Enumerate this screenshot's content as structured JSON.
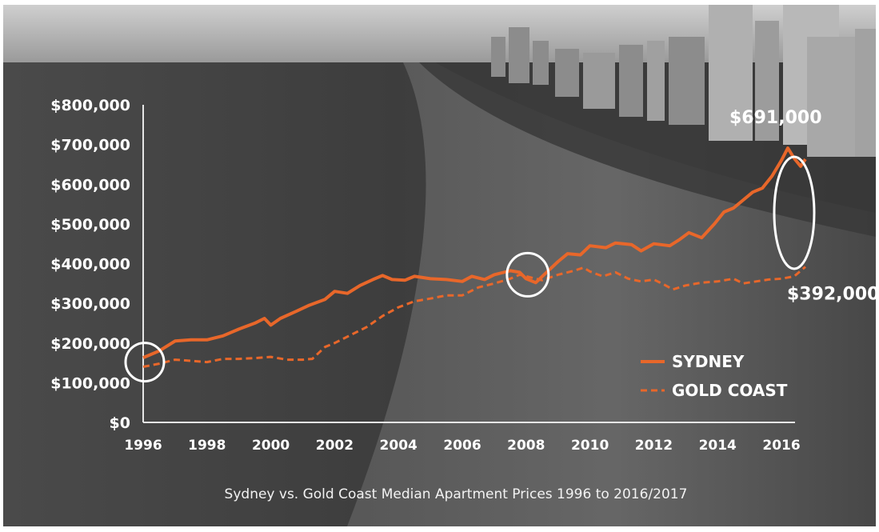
{
  "chart_data": {
    "type": "line",
    "title": "Sydney vs. Gold Coast Median Apartment Prices 1996 to 2016/2017",
    "xlabel": "",
    "ylabel": "",
    "xlim": [
      1996,
      2016.3
    ],
    "ylim": [
      0,
      800000
    ],
    "x_ticks": [
      "1996",
      "1998",
      "2000",
      "2002",
      "2004",
      "2006",
      "2008",
      "2010",
      "2012",
      "2014",
      "2016"
    ],
    "y_ticks": [
      "$0",
      "$100,000",
      "$200,000",
      "$300,000",
      "$400,000",
      "$500,000",
      "$600,000",
      "$700,000",
      "$800,000"
    ],
    "grid": false,
    "legend_position": "bottom-right",
    "colors": {
      "series": "#e8672a",
      "text": "#ffffff",
      "axis": "#e6e6e6",
      "highlight": "#ffffff"
    },
    "series": [
      {
        "name": "SYDNEY",
        "style": "solid",
        "points": [
          [
            1996,
            163000
          ],
          [
            1996.5,
            180000
          ],
          [
            1997,
            205000
          ],
          [
            1997.5,
            208000
          ],
          [
            1998,
            208000
          ],
          [
            1998.5,
            218000
          ],
          [
            1999,
            235000
          ],
          [
            1999.5,
            250000
          ],
          [
            1999.8,
            262000
          ],
          [
            2000,
            245000
          ],
          [
            2000.3,
            262000
          ],
          [
            2000.8,
            280000
          ],
          [
            2001.2,
            295000
          ],
          [
            2001.7,
            310000
          ],
          [
            2002,
            330000
          ],
          [
            2002.4,
            325000
          ],
          [
            2002.8,
            345000
          ],
          [
            2003.2,
            360000
          ],
          [
            2003.5,
            370000
          ],
          [
            2003.8,
            360000
          ],
          [
            2004.2,
            358000
          ],
          [
            2004.5,
            368000
          ],
          [
            2005,
            362000
          ],
          [
            2005.5,
            360000
          ],
          [
            2006,
            355000
          ],
          [
            2006.3,
            368000
          ],
          [
            2006.7,
            360000
          ],
          [
            2007,
            372000
          ],
          [
            2007.5,
            382000
          ],
          [
            2007.8,
            378000
          ],
          [
            2008,
            362000
          ],
          [
            2008.3,
            352000
          ],
          [
            2008.6,
            375000
          ],
          [
            2009,
            405000
          ],
          [
            2009.3,
            425000
          ],
          [
            2009.7,
            422000
          ],
          [
            2010,
            445000
          ],
          [
            2010.5,
            440000
          ],
          [
            2010.8,
            452000
          ],
          [
            2011.3,
            448000
          ],
          [
            2011.6,
            432000
          ],
          [
            2012,
            450000
          ],
          [
            2012.5,
            445000
          ],
          [
            2012.8,
            460000
          ],
          [
            2013.1,
            478000
          ],
          [
            2013.5,
            465000
          ],
          [
            2013.9,
            500000
          ],
          [
            2014.2,
            530000
          ],
          [
            2014.5,
            540000
          ],
          [
            2014.8,
            560000
          ],
          [
            2015.1,
            580000
          ],
          [
            2015.4,
            590000
          ],
          [
            2015.7,
            620000
          ],
          [
            2016,
            660000
          ],
          [
            2016.2,
            691000
          ],
          [
            2016.4,
            665000
          ],
          [
            2016.6,
            645000
          ],
          [
            2016.75,
            663000
          ]
        ]
      },
      {
        "name": "GOLD COAST",
        "style": "dashed",
        "points": [
          [
            1996,
            140000
          ],
          [
            1996.5,
            148000
          ],
          [
            1997,
            158000
          ],
          [
            1997.5,
            155000
          ],
          [
            1998,
            152000
          ],
          [
            1998.5,
            160000
          ],
          [
            1999,
            160000
          ],
          [
            1999.5,
            162000
          ],
          [
            2000,
            165000
          ],
          [
            2000.5,
            158000
          ],
          [
            2001,
            158000
          ],
          [
            2001.3,
            160000
          ],
          [
            2001.7,
            190000
          ],
          [
            2002,
            200000
          ],
          [
            2002.5,
            220000
          ],
          [
            2003,
            240000
          ],
          [
            2003.5,
            268000
          ],
          [
            2004,
            290000
          ],
          [
            2004.5,
            305000
          ],
          [
            2005,
            312000
          ],
          [
            2005.5,
            320000
          ],
          [
            2006,
            320000
          ],
          [
            2006.5,
            340000
          ],
          [
            2007,
            350000
          ],
          [
            2007.5,
            362000
          ],
          [
            2007.8,
            372000
          ],
          [
            2008,
            368000
          ],
          [
            2008.5,
            358000
          ],
          [
            2009,
            372000
          ],
          [
            2009.5,
            382000
          ],
          [
            2009.8,
            390000
          ],
          [
            2010,
            380000
          ],
          [
            2010.4,
            368000
          ],
          [
            2010.8,
            378000
          ],
          [
            2011.2,
            362000
          ],
          [
            2011.6,
            355000
          ],
          [
            2012,
            360000
          ],
          [
            2012.3,
            348000
          ],
          [
            2012.6,
            335000
          ],
          [
            2013,
            345000
          ],
          [
            2013.5,
            352000
          ],
          [
            2014,
            355000
          ],
          [
            2014.5,
            362000
          ],
          [
            2014.8,
            350000
          ],
          [
            2015.2,
            355000
          ],
          [
            2015.6,
            360000
          ],
          [
            2016,
            362000
          ],
          [
            2016.4,
            368000
          ],
          [
            2016.75,
            392000
          ]
        ]
      }
    ],
    "annotations": [
      {
        "label": "$691,000",
        "x": 2016.2,
        "y": 691000
      },
      {
        "label": "$392,000",
        "x": 2016.75,
        "y": 392000
      }
    ],
    "highlight_circles": [
      {
        "x": 1996.05,
        "y": 152000
      },
      {
        "x": 2008.05,
        "y": 372000
      },
      {
        "x": 2016.4,
        "y": 528000
      }
    ]
  }
}
